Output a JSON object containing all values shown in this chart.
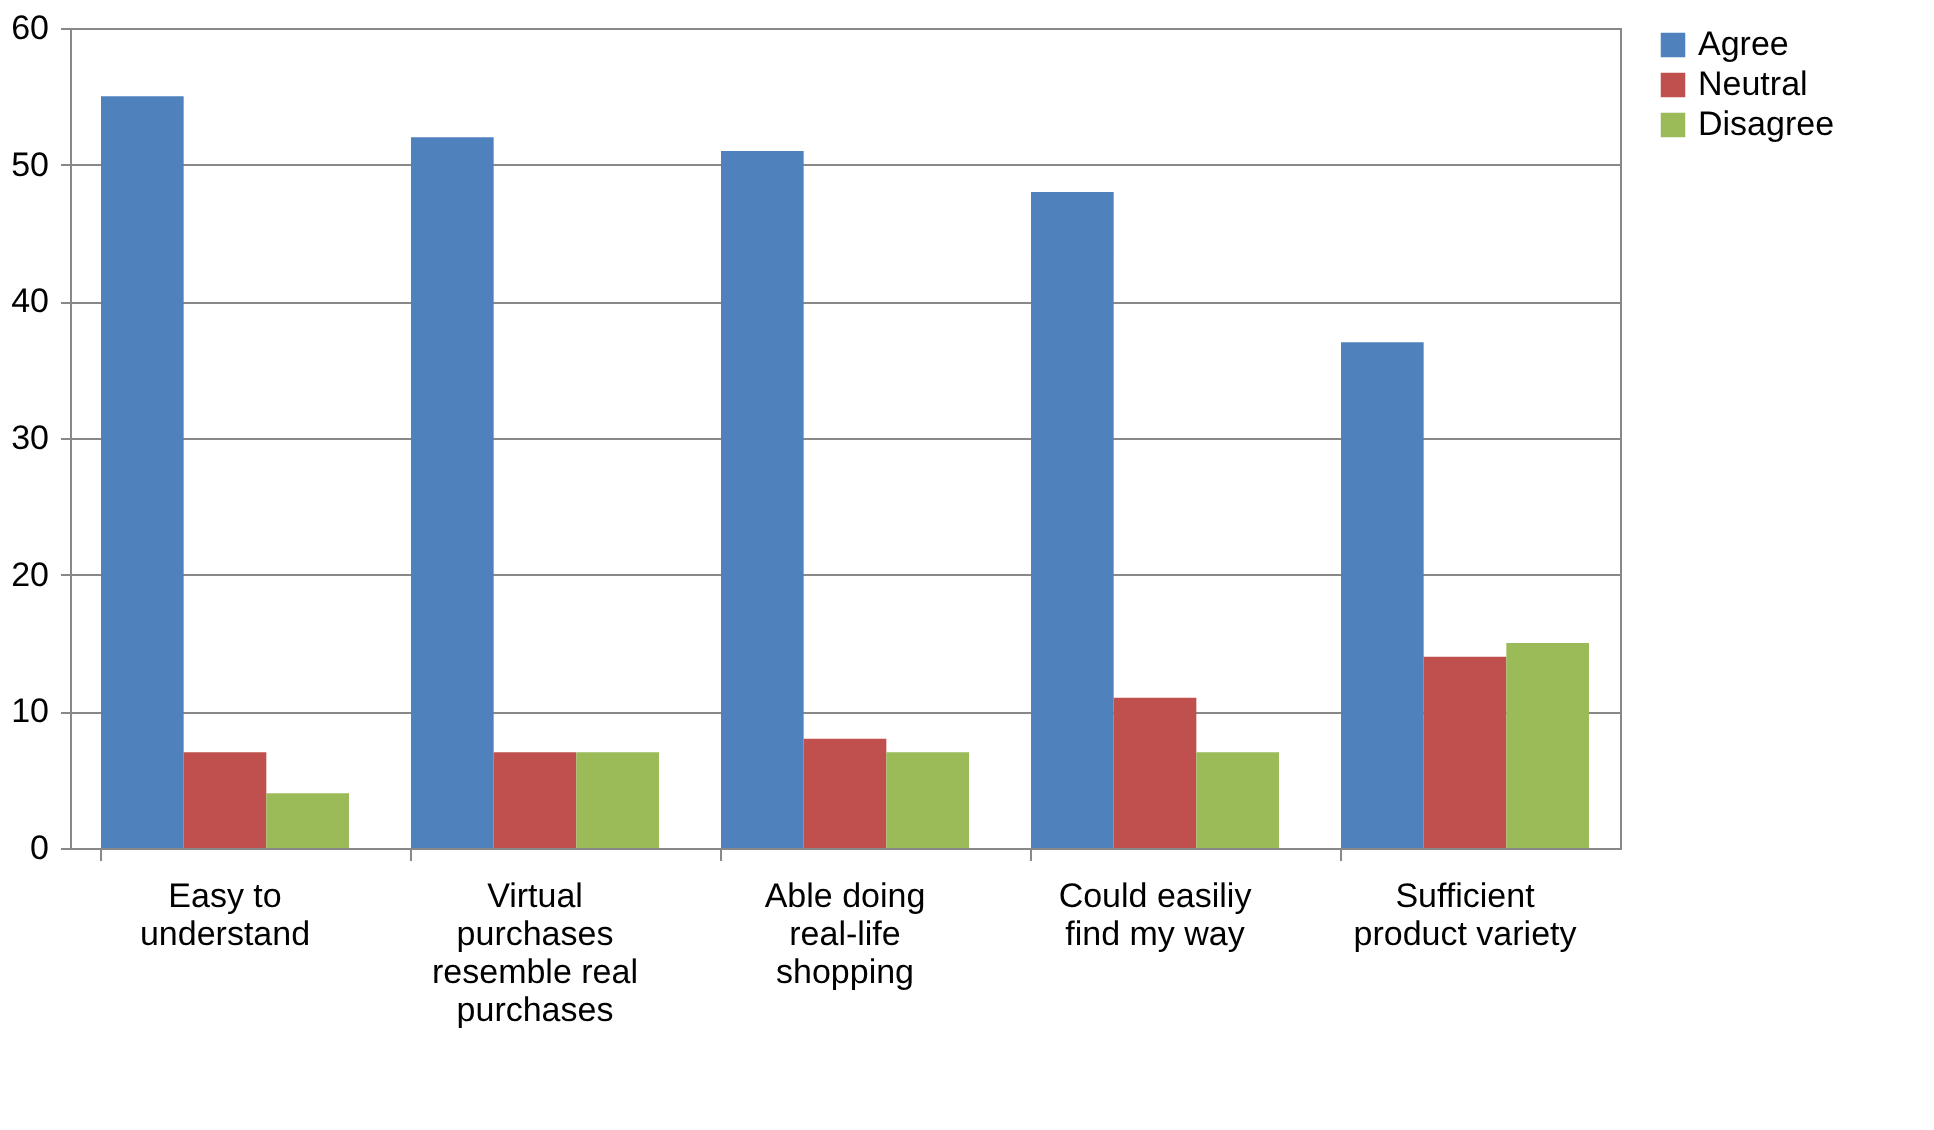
{
  "chart_data": {
    "type": "bar",
    "categories": [
      "Easy to understand",
      "Virtual purchases resemble real purchases",
      "Able doing real-life shopping",
      "Could easiliy find my way",
      "Sufficient product variety"
    ],
    "series": [
      {
        "name": "Agree",
        "color": "#4f81bd",
        "values": [
          55,
          52,
          51,
          48,
          37
        ]
      },
      {
        "name": "Neutral",
        "color": "#c0504d",
        "values": [
          7,
          7,
          8,
          11,
          14
        ]
      },
      {
        "name": "Disagree",
        "color": "#9bbb59",
        "values": [
          4,
          7,
          7,
          7,
          15
        ]
      }
    ],
    "ylim": [
      0,
      60
    ],
    "yticks": [
      0,
      10,
      20,
      30,
      40,
      50,
      60
    ],
    "grid": "y",
    "legend": "right"
  }
}
